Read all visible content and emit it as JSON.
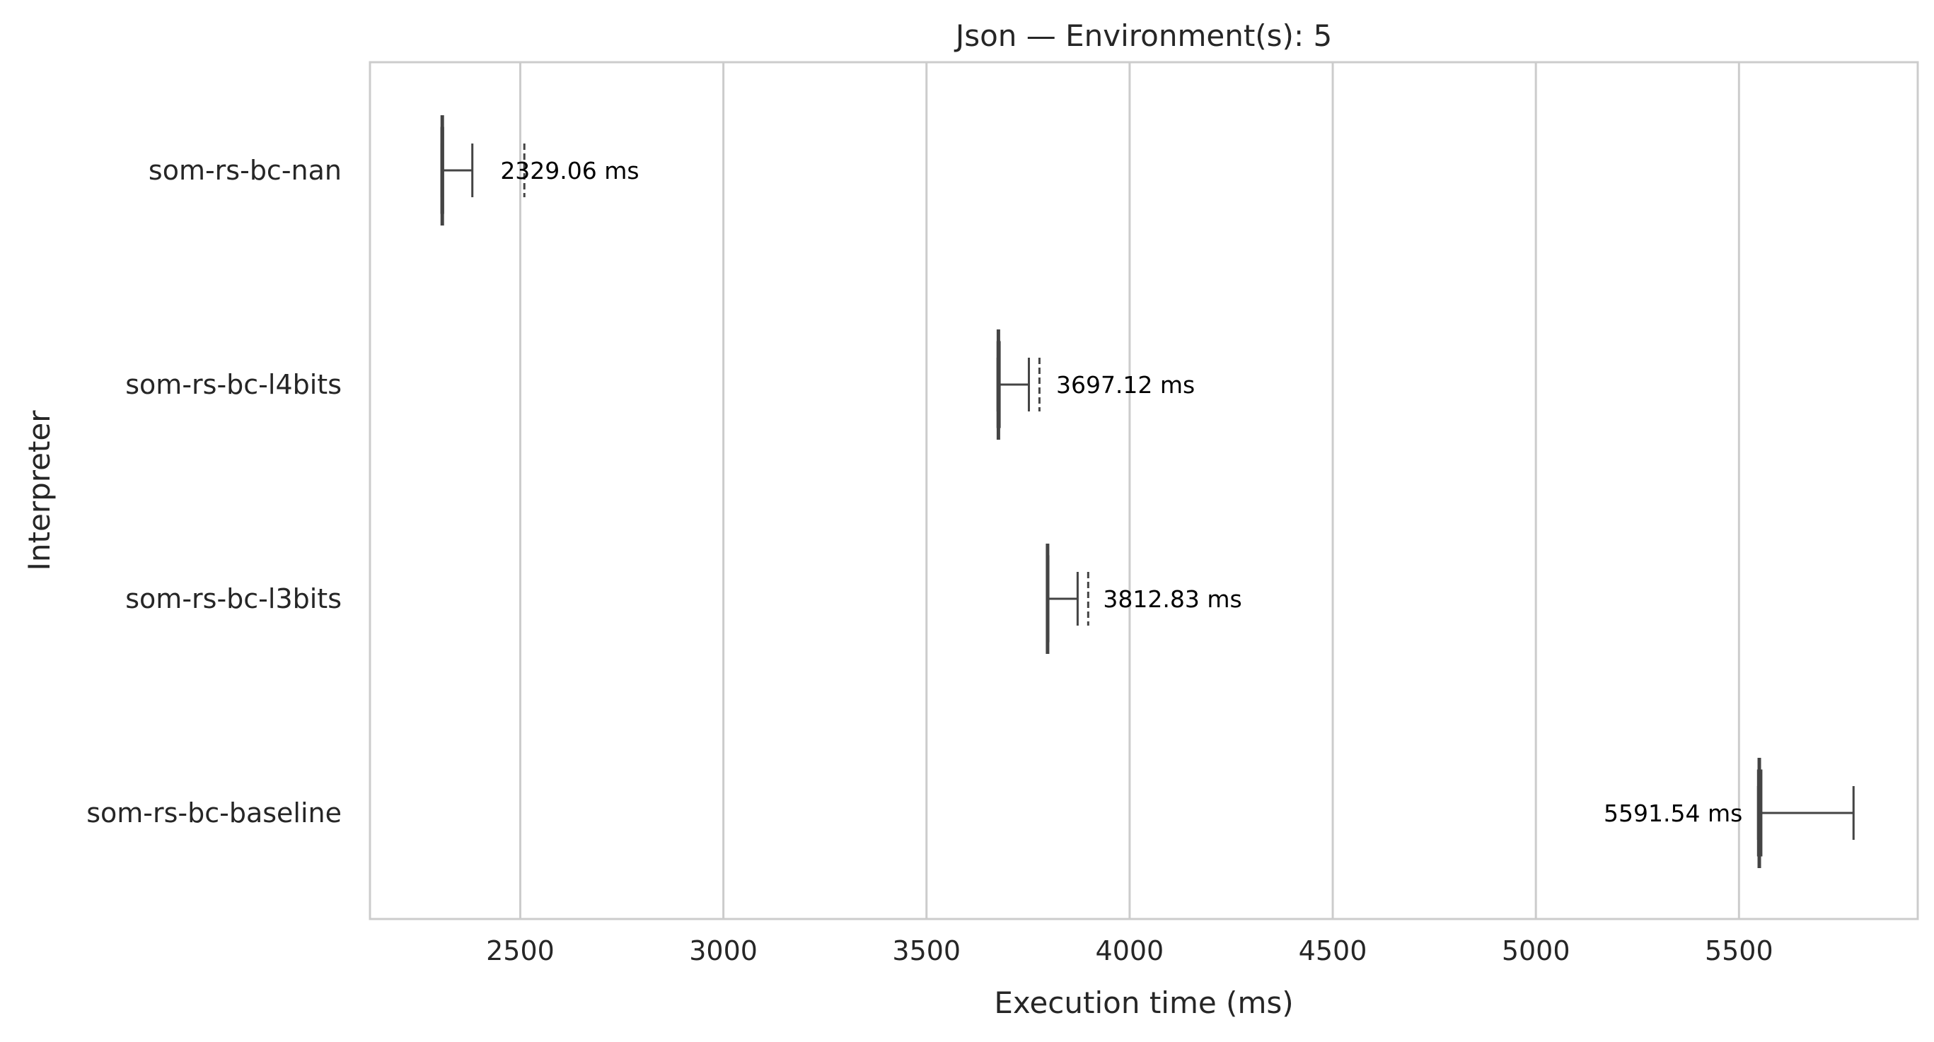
{
  "chart_data": {
    "type": "boxplot",
    "orientation": "horizontal",
    "title": "Json — Environment(s): 5",
    "xlabel": "Execution time (ms)",
    "ylabel": "Interpreter",
    "xlim": [
      2130,
      5940
    ],
    "xticks": [
      2500,
      3000,
      3500,
      4000,
      4500,
      5000,
      5500
    ],
    "grid": "vertical",
    "categories": [
      "som-rs-bc-nan",
      "som-rs-bc-l4bits",
      "som-rs-bc-l3bits",
      "som-rs-bc-baseline"
    ],
    "series": [
      {
        "category": "som-rs-bc-nan",
        "min": 2306,
        "q1": 2306,
        "median": 2308,
        "mean": 2329.06,
        "q3": 2310,
        "whisker_high": 2382,
        "outliers": [
          2510
        ],
        "label": "2329.06 ms"
      },
      {
        "category": "som-rs-bc-l4bits",
        "min": 3675,
        "q1": 3675,
        "median": 3677,
        "mean": 3697.12,
        "q3": 3680,
        "whisker_high": 3752,
        "outliers": [
          3778
        ],
        "label": "3697.12 ms"
      },
      {
        "category": "som-rs-bc-l3bits",
        "min": 3797,
        "q1": 3797,
        "median": 3798,
        "mean": 3812.83,
        "q3": 3800,
        "whisker_high": 3872,
        "outliers": [
          3898
        ],
        "label": "3812.83 ms"
      },
      {
        "category": "som-rs-bc-baseline",
        "min": 5547,
        "q1": 5547,
        "median": 5550,
        "mean": 5591.54,
        "q3": 5555,
        "whisker_high": 5782,
        "outliers": [],
        "label": "5591.54 ms"
      }
    ],
    "colors": {
      "box": "#444444",
      "grid": "#cccccc",
      "frame": "#cccccc",
      "text": "#262626"
    }
  }
}
